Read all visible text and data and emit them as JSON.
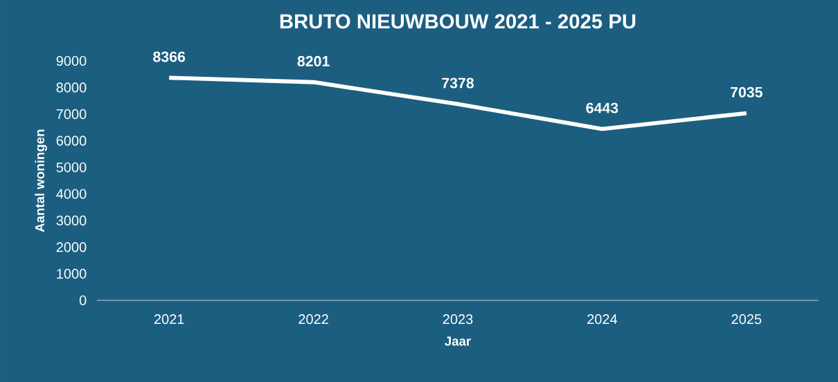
{
  "chart_data": {
    "type": "line",
    "title": "BRUTO NIEUWBOUW 2021 - 2025 PU",
    "xlabel": "Jaar",
    "ylabel": "Aantal woningen",
    "categories": [
      "2021",
      "2022",
      "2023",
      "2024",
      "2025"
    ],
    "series": [
      {
        "color": "#ffffff",
        "values": [
          8366,
          8201,
          7378,
          6443,
          7035
        ]
      }
    ],
    "ylim": [
      0,
      9000
    ],
    "yticks": [
      0,
      1000,
      2000,
      3000,
      4000,
      5000,
      6000,
      7000,
      8000,
      9000
    ],
    "data_labels": true,
    "grid": false,
    "marker": "none",
    "line_style": "solid"
  }
}
